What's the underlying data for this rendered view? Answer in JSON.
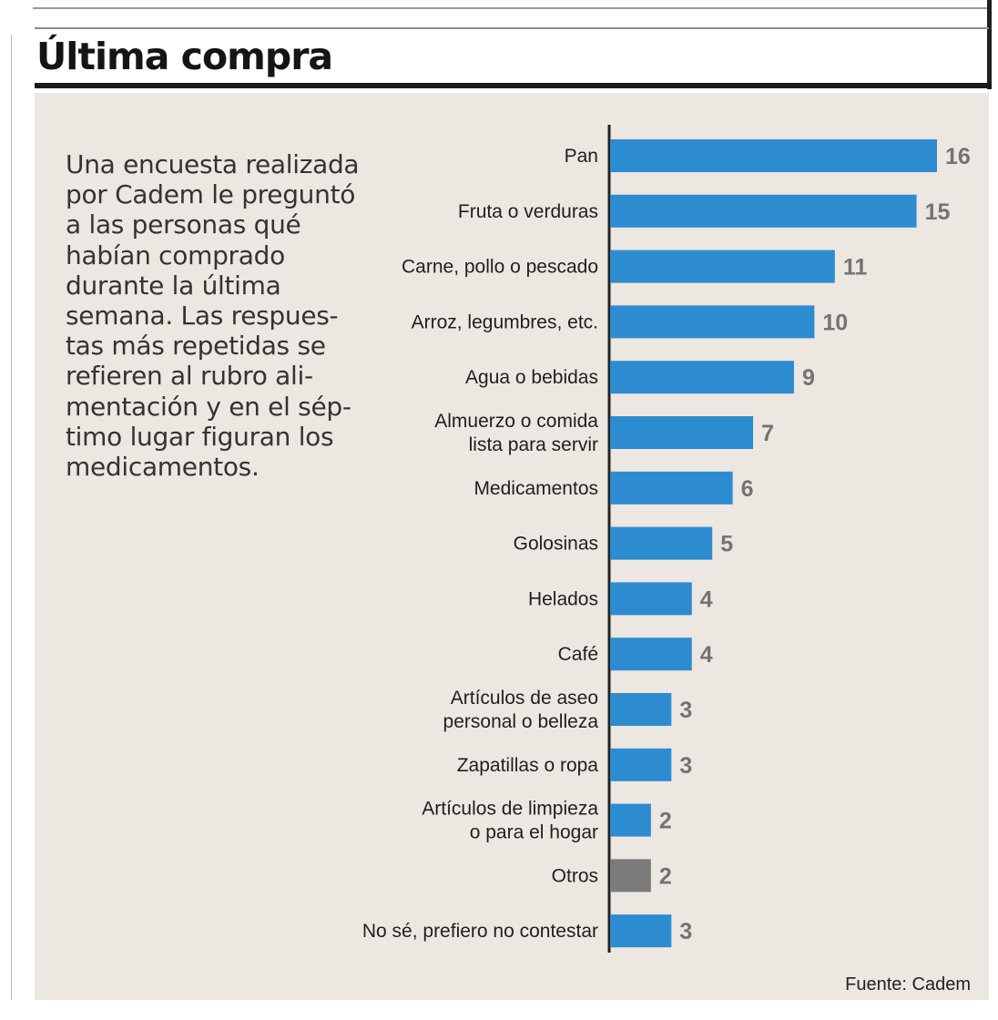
{
  "page": {
    "title": "Última compra",
    "description": "Una encuesta realizada\npor Cadem le preguntó\na las personas qué\nhabían comprado\ndurante la última\nsemana. Las respues-\ntas más repetidas se\nrefieren al rubro ali-\nmentación y en el sép-\ntimo lugar figuran los\nmedicamentos.",
    "source": "Fuente: Cadem"
  },
  "colors": {
    "bar": "#2d8ccf",
    "bar_other": "#7c7c7c",
    "value_label": "#737373",
    "category_label": "#1f1f1f",
    "axis": "#222222",
    "panel_background": "#ece7e1"
  },
  "chart_data": {
    "type": "bar",
    "orientation": "horizontal",
    "title": "Última compra",
    "xlabel": "",
    "ylabel": "",
    "grid": false,
    "legend": "none",
    "xlim": [
      0,
      16
    ],
    "categories": [
      "Pan",
      "Fruta o verduras",
      "Carne, pollo o pescado",
      "Arroz, legumbres, etc.",
      "Agua o bebidas",
      "Almuerzo o comida\nlista para servir",
      "Medicamentos",
      "Golosinas",
      "Helados",
      "Café",
      "Artículos de aseo\npersonal o belleza",
      "Zapatillas o ropa",
      "Artículos de limpieza\no para el hogar",
      "Otros",
      "No sé, prefiero no contestar"
    ],
    "values": [
      16,
      15,
      11,
      10,
      9,
      7,
      6,
      5,
      4,
      4,
      3,
      3,
      2,
      2,
      3
    ],
    "bar_colors": [
      "#2d8ccf",
      "#2d8ccf",
      "#2d8ccf",
      "#2d8ccf",
      "#2d8ccf",
      "#2d8ccf",
      "#2d8ccf",
      "#2d8ccf",
      "#2d8ccf",
      "#2d8ccf",
      "#2d8ccf",
      "#2d8ccf",
      "#2d8ccf",
      "#7c7c7c",
      "#2d8ccf"
    ]
  }
}
